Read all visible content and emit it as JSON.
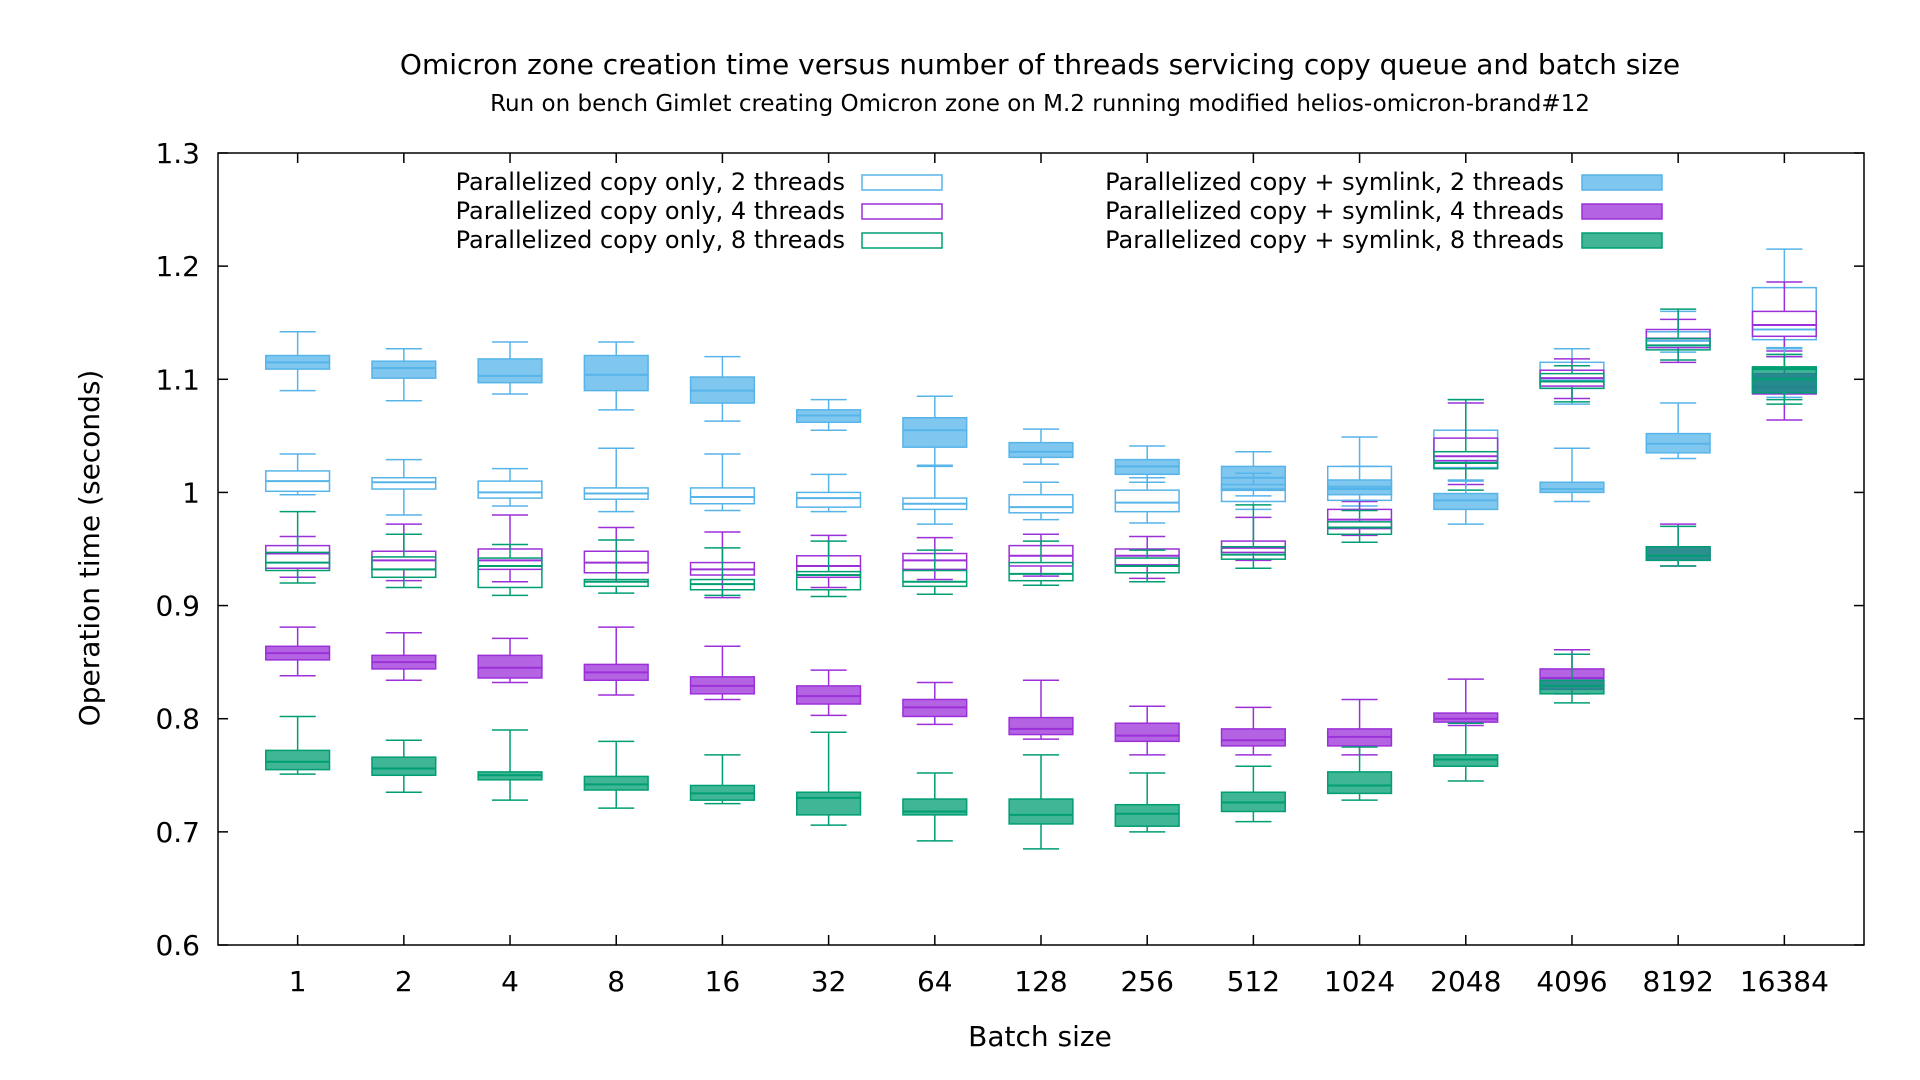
{
  "chart_data": {
    "type": "box",
    "title": "Omicron zone creation time versus number of threads servicing copy queue and batch size",
    "subtitle": "Run on bench Gimlet creating Omicron zone on M.2 running modified helios-omicron-brand#12",
    "xlabel": "Batch size",
    "ylabel": "Operation time (seconds)",
    "ylim": [
      0.6,
      1.3
    ],
    "yticks": [
      "0.6",
      "0.7",
      "0.8",
      "0.9",
      "1",
      "1.1",
      "1.2",
      "1.3"
    ],
    "categories": [
      "1",
      "2",
      "4",
      "8",
      "16",
      "32",
      "64",
      "128",
      "256",
      "512",
      "1024",
      "2048",
      "4096",
      "8192",
      "16384"
    ],
    "legend_position": "top",
    "series": [
      {
        "name": "Parallelized copy only, 2 threads",
        "color": "#56b4e9",
        "filled": false,
        "boxes": [
          [
            0.998,
            1.001,
            1.01,
            1.019,
            1.034
          ],
          [
            0.98,
            1.003,
            1.009,
            1.013,
            1.029
          ],
          [
            0.988,
            0.995,
            1.0,
            1.01,
            1.021
          ],
          [
            0.983,
            0.994,
            0.999,
            1.004,
            1.039
          ],
          [
            0.984,
            0.99,
            0.996,
            1.004,
            1.034
          ],
          [
            0.983,
            0.987,
            0.995,
            1.0,
            1.016
          ],
          [
            0.972,
            0.985,
            0.99,
            0.995,
            1.023
          ],
          [
            0.976,
            0.982,
            0.987,
            0.998,
            1.009
          ],
          [
            0.973,
            0.983,
            0.991,
            1.002,
            1.013
          ],
          [
            0.985,
            0.992,
            1.002,
            1.007,
            1.017
          ],
          [
            0.988,
            0.993,
            1.003,
            1.023,
            1.049
          ],
          [
            1.01,
            1.022,
            1.028,
            1.055,
            1.082
          ],
          [
            1.078,
            1.092,
            1.099,
            1.115,
            1.127
          ],
          [
            1.124,
            1.128,
            1.134,
            1.142,
            1.16
          ],
          [
            1.127,
            1.135,
            1.144,
            1.181,
            1.215
          ]
        ]
      },
      {
        "name": "Parallelized copy only, 4 threads",
        "color": "#9b30d9",
        "filled": false,
        "boxes": [
          [
            0.925,
            0.933,
            0.946,
            0.953,
            0.961
          ],
          [
            0.922,
            0.932,
            0.94,
            0.948,
            0.972
          ],
          [
            0.921,
            0.932,
            0.94,
            0.95,
            0.98
          ],
          [
            0.921,
            0.929,
            0.938,
            0.948,
            0.969
          ],
          [
            0.907,
            0.927,
            0.932,
            0.938,
            0.965
          ],
          [
            0.916,
            0.925,
            0.935,
            0.944,
            0.962
          ],
          [
            0.923,
            0.932,
            0.94,
            0.946,
            0.96
          ],
          [
            0.926,
            0.935,
            0.944,
            0.953,
            0.963
          ],
          [
            0.924,
            0.936,
            0.944,
            0.95,
            0.961
          ],
          [
            0.94,
            0.947,
            0.951,
            0.957,
            0.978
          ],
          [
            0.962,
            0.968,
            0.976,
            0.985,
            0.992
          ],
          [
            1.007,
            1.028,
            1.032,
            1.048,
            1.079
          ],
          [
            1.083,
            1.094,
            1.101,
            1.108,
            1.118
          ],
          [
            1.115,
            1.128,
            1.136,
            1.144,
            1.153
          ],
          [
            1.125,
            1.138,
            1.148,
            1.16,
            1.186
          ]
        ]
      },
      {
        "name": "Parallelized copy only, 8 threads",
        "color": "#009e73",
        "filled": false,
        "boxes": [
          [
            0.92,
            0.931,
            0.938,
            0.947,
            0.983
          ],
          [
            0.916,
            0.925,
            0.932,
            0.943,
            0.963
          ],
          [
            0.909,
            0.916,
            0.935,
            0.942,
            0.954
          ],
          [
            0.911,
            0.917,
            0.921,
            0.923,
            0.958
          ],
          [
            0.909,
            0.914,
            0.919,
            0.923,
            0.951
          ],
          [
            0.908,
            0.914,
            0.927,
            0.93,
            0.957
          ],
          [
            0.91,
            0.917,
            0.921,
            0.931,
            0.949
          ],
          [
            0.918,
            0.922,
            0.928,
            0.938,
            0.957
          ],
          [
            0.921,
            0.929,
            0.935,
            0.942,
            0.949
          ],
          [
            0.933,
            0.941,
            0.945,
            0.952,
            0.989
          ],
          [
            0.956,
            0.963,
            0.969,
            0.974,
            0.984
          ],
          [
            1.002,
            1.021,
            1.026,
            1.036,
            1.082
          ],
          [
            1.08,
            1.092,
            1.098,
            1.105,
            1.112
          ],
          [
            1.117,
            1.126,
            1.13,
            1.136,
            1.162
          ],
          [
            1.082,
            1.102,
            1.109,
            1.111,
            1.12
          ]
        ]
      },
      {
        "name": "Parallelized copy + symlink, 2 threads",
        "color": "#56b4e9",
        "filled": true,
        "boxes": [
          [
            1.09,
            1.109,
            1.115,
            1.121,
            1.142
          ],
          [
            1.081,
            1.101,
            1.11,
            1.116,
            1.127
          ],
          [
            1.087,
            1.097,
            1.103,
            1.118,
            1.133
          ],
          [
            1.073,
            1.09,
            1.104,
            1.121,
            1.133
          ],
          [
            1.063,
            1.079,
            1.09,
            1.102,
            1.12
          ],
          [
            1.055,
            1.062,
            1.068,
            1.073,
            1.082
          ],
          [
            1.024,
            1.04,
            1.055,
            1.066,
            1.085
          ],
          [
            1.025,
            1.031,
            1.036,
            1.044,
            1.056
          ],
          [
            1.009,
            1.016,
            1.023,
            1.029,
            1.041
          ],
          [
            0.997,
            1.003,
            1.013,
            1.023,
            1.036
          ],
          [
            0.993,
            0.998,
            1.005,
            1.011,
            1.023
          ],
          [
            0.972,
            0.985,
            0.993,
            0.999,
            1.011
          ],
          [
            0.992,
            1.0,
            1.003,
            1.009,
            1.039
          ],
          [
            1.03,
            1.035,
            1.043,
            1.052,
            1.079
          ],
          [
            1.084,
            1.088,
            1.094,
            1.103,
            1.128
          ]
        ]
      },
      {
        "name": "Parallelized copy + symlink, 4 threads",
        "color": "#9b30d9",
        "filled": true,
        "boxes": [
          [
            0.838,
            0.852,
            0.858,
            0.864,
            0.881
          ],
          [
            0.834,
            0.844,
            0.85,
            0.856,
            0.876
          ],
          [
            0.832,
            0.836,
            0.845,
            0.856,
            0.871
          ],
          [
            0.821,
            0.834,
            0.841,
            0.848,
            0.881
          ],
          [
            0.817,
            0.822,
            0.829,
            0.837,
            0.864
          ],
          [
            0.803,
            0.813,
            0.82,
            0.829,
            0.843
          ],
          [
            0.795,
            0.802,
            0.81,
            0.817,
            0.832
          ],
          [
            0.782,
            0.786,
            0.791,
            0.801,
            0.834
          ],
          [
            0.768,
            0.78,
            0.785,
            0.796,
            0.811
          ],
          [
            0.768,
            0.776,
            0.781,
            0.791,
            0.81
          ],
          [
            0.768,
            0.776,
            0.784,
            0.791,
            0.817
          ],
          [
            0.794,
            0.797,
            0.8,
            0.805,
            0.835
          ],
          [
            0.822,
            0.826,
            0.836,
            0.844,
            0.861
          ],
          [
            0.935,
            0.94,
            0.944,
            0.952,
            0.972
          ],
          [
            1.064,
            1.087,
            1.093,
            1.105,
            1.12
          ]
        ]
      },
      {
        "name": "Parallelized copy + symlink, 8 threads",
        "color": "#009e73",
        "filled": true,
        "boxes": [
          [
            0.751,
            0.755,
            0.762,
            0.772,
            0.802
          ],
          [
            0.735,
            0.75,
            0.756,
            0.766,
            0.781
          ],
          [
            0.728,
            0.746,
            0.75,
            0.753,
            0.79
          ],
          [
            0.721,
            0.737,
            0.742,
            0.749,
            0.78
          ],
          [
            0.725,
            0.728,
            0.734,
            0.741,
            0.768
          ],
          [
            0.706,
            0.715,
            0.73,
            0.735,
            0.788
          ],
          [
            0.692,
            0.715,
            0.718,
            0.729,
            0.752
          ],
          [
            0.685,
            0.707,
            0.715,
            0.729,
            0.768
          ],
          [
            0.7,
            0.705,
            0.716,
            0.724,
            0.752
          ],
          [
            0.709,
            0.718,
            0.726,
            0.735,
            0.758
          ],
          [
            0.728,
            0.734,
            0.741,
            0.753,
            0.775
          ],
          [
            0.745,
            0.758,
            0.764,
            0.768,
            0.796
          ],
          [
            0.814,
            0.822,
            0.829,
            0.834,
            0.857
          ],
          [
            0.935,
            0.94,
            0.944,
            0.952,
            0.97
          ],
          [
            1.078,
            1.088,
            1.1,
            1.11,
            1.122
          ]
        ]
      }
    ]
  }
}
